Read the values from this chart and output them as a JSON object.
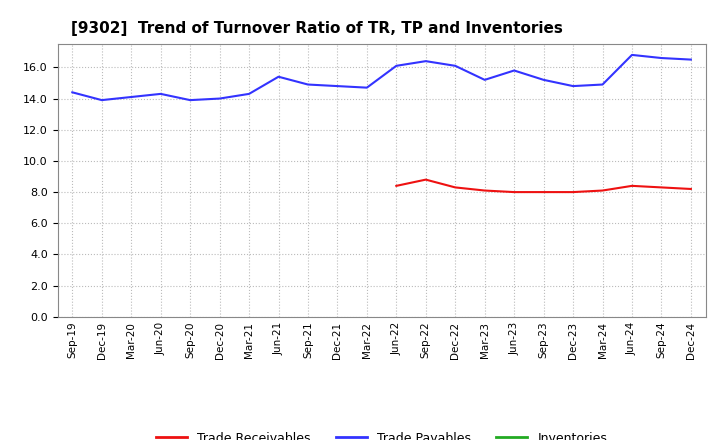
{
  "title": "[9302]  Trend of Turnover Ratio of TR, TP and Inventories",
  "x_labels": [
    "Sep-19",
    "Dec-19",
    "Mar-20",
    "Jun-20",
    "Sep-20",
    "Dec-20",
    "Mar-21",
    "Jun-21",
    "Sep-21",
    "Dec-21",
    "Mar-22",
    "Jun-22",
    "Sep-22",
    "Dec-22",
    "Mar-23",
    "Jun-23",
    "Sep-23",
    "Dec-23",
    "Mar-24",
    "Jun-24",
    "Sep-24",
    "Dec-24"
  ],
  "trade_payables": [
    14.4,
    13.9,
    14.1,
    14.3,
    13.9,
    14.0,
    14.3,
    15.4,
    14.9,
    14.8,
    14.7,
    16.1,
    16.4,
    16.1,
    15.2,
    15.8,
    15.2,
    14.8,
    14.9,
    16.8,
    16.6,
    16.5
  ],
  "trade_receivables": [
    null,
    null,
    null,
    null,
    null,
    null,
    null,
    null,
    null,
    null,
    null,
    8.4,
    8.8,
    8.3,
    8.1,
    8.0,
    8.0,
    8.0,
    8.1,
    8.4,
    8.3,
    8.2
  ],
  "inventories": [
    null,
    null,
    null,
    null,
    null,
    null,
    null,
    null,
    null,
    null,
    null,
    null,
    null,
    null,
    null,
    null,
    null,
    null,
    null,
    null,
    null,
    null
  ],
  "ylim": [
    0,
    17.5
  ],
  "yticks": [
    0.0,
    2.0,
    4.0,
    6.0,
    8.0,
    10.0,
    12.0,
    14.0,
    16.0
  ],
  "tp_color": "#3333FF",
  "tr_color": "#EE1111",
  "inv_color": "#22AA22",
  "bg_color": "#FFFFFF",
  "grid_color": "#BBBBBB",
  "title_fontsize": 11,
  "legend_labels": [
    "Trade Receivables",
    "Trade Payables",
    "Inventories"
  ]
}
